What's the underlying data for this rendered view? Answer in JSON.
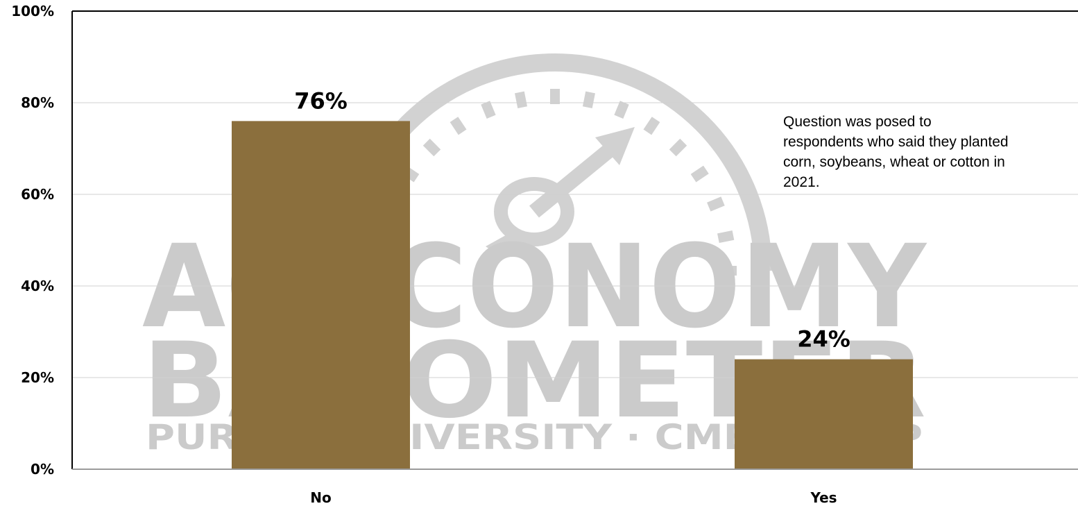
{
  "chart_data": {
    "type": "bar",
    "categories": [
      "No",
      "Yes"
    ],
    "values": [
      76,
      24
    ],
    "data_labels": [
      "76%",
      "24%"
    ],
    "ylim": [
      0,
      100
    ],
    "yticks": [
      0,
      20,
      40,
      60,
      80,
      100
    ],
    "ytick_labels": [
      "0%",
      "20%",
      "40%",
      "60%",
      "80%",
      "100%"
    ],
    "grid": true,
    "bar_color": "#8b6f3d",
    "annotation": "Question was posed to respondents who said they planted corn, soybeans, wheat or cotton in 2021."
  },
  "watermark": {
    "lines": [
      "AGECONOMY",
      "BAROMETER",
      "PURDUE UNIVERSITY · CME GROUP"
    ],
    "color": "#c9c9c9",
    "icon": "gauge-arrow-icon"
  }
}
